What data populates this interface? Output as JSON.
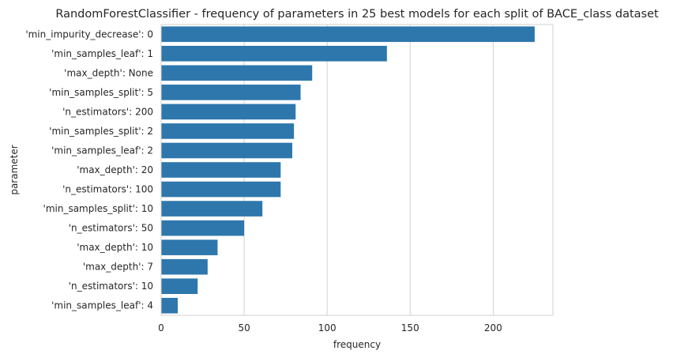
{
  "chart_data": {
    "type": "bar",
    "orientation": "horizontal",
    "title": "RandomForestClassifier - frequency of parameters in 25 best models for each split of BACE_class dataset",
    "xlabel": "frequency",
    "ylabel": "parameter",
    "xlim": [
      0,
      236
    ],
    "x_ticks": [
      0,
      50,
      100,
      150,
      200
    ],
    "grid": "vertical",
    "bar_color": "#2e77ac",
    "categories": [
      "'min_impurity_decrease': 0",
      "'min_samples_leaf': 1",
      "'max_depth': None",
      "'min_samples_split': 5",
      "'n_estimators': 200",
      "'min_samples_split': 2",
      "'min_samples_leaf': 2",
      "'max_depth': 20",
      "'n_estimators': 100",
      "'min_samples_split': 10",
      "'n_estimators': 50",
      "'max_depth': 10",
      "'max_depth': 7",
      "'n_estimators': 10",
      "'min_samples_leaf': 4"
    ],
    "values": [
      225,
      136,
      91,
      84,
      81,
      80,
      79,
      72,
      72,
      61,
      50,
      34,
      28,
      22,
      10
    ]
  }
}
